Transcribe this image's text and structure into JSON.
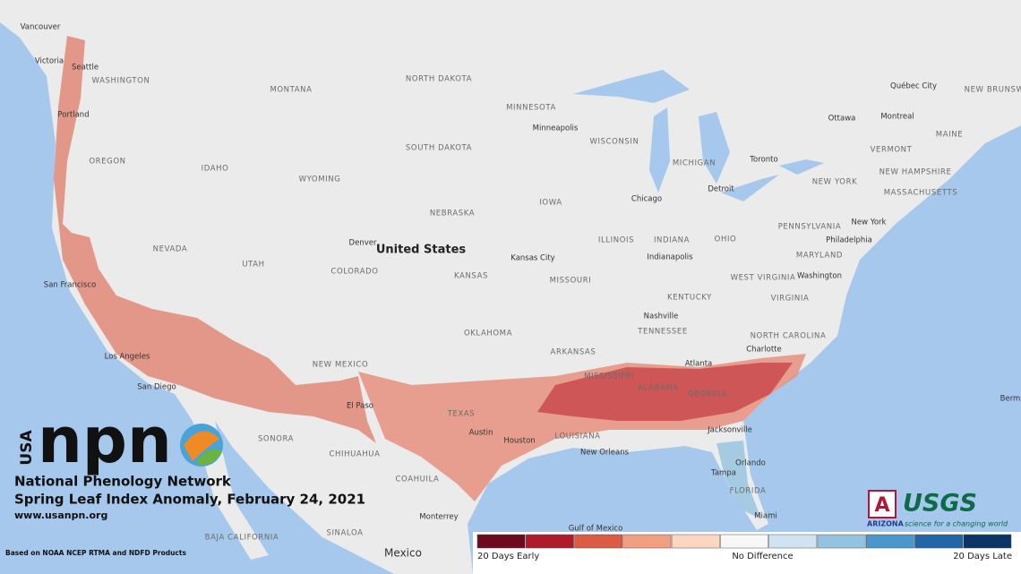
{
  "logo": {
    "usa": "USA",
    "npn": "npn",
    "network": "National Phenology Network"
  },
  "title": "Spring Leaf Index Anomaly, February 24, 2021",
  "url": "www.usanpn.org",
  "source": "Based on NOAA NCEP RTMA and NDFD Products",
  "legend": {
    "colors": [
      "#6d0a1e",
      "#b01b2b",
      "#dd5a45",
      "#f0a080",
      "#fcd6c0",
      "#f7f7f7",
      "#cfe3f2",
      "#93c3e0",
      "#4b96cb",
      "#2465a8",
      "#0b3566"
    ],
    "labels": [
      "20 Days Early",
      "No Difference",
      "20 Days Late"
    ]
  },
  "partners": {
    "arizona": "ARIZONA",
    "usgs": "USGS",
    "tagline": "science for a changing world"
  },
  "map_labels": [
    "Vancouver",
    "Victoria",
    "Seattle",
    "WASHINGTON",
    "Portland",
    "OREGON",
    "IDAHO",
    "MONTANA",
    "WYOMING",
    "NORTH DAKOTA",
    "SOUTH DAKOTA",
    "MINNESOTA",
    "Minneapolis",
    "WISCONSIN",
    "MICHIGAN",
    "Chicago",
    "Detroit",
    "Toronto",
    "Ottawa",
    "Montreal",
    "Québec City",
    "NEW BRUNSWICK",
    "MAINE",
    "VERMONT",
    "NEW HAMPSHIRE",
    "MASSACHUSETTS",
    "NEW YORK",
    "PENNSYLVANIA",
    "New York",
    "Philadelphia",
    "NEBRASKA",
    "IOWA",
    "ILLINOIS",
    "INDIANA",
    "OHIO",
    "Indianapolis",
    "NEVADA",
    "UTAH",
    "COLORADO",
    "Denver",
    "United States",
    "Kansas City",
    "KANSAS",
    "MISSOURI",
    "MARYLAND",
    "Washington",
    "WEST VIRGINIA",
    "VIRGINIA",
    "KENTUCKY",
    "San Francisco",
    "Nashville",
    "TENNESSEE",
    "NORTH CAROLINA",
    "Charlotte",
    "OKLAHOMA",
    "ARKANSAS",
    "Atlanta",
    "GEORGIA",
    "ALABAMA",
    "MISSISSIPPI",
    "NEW MEXICO",
    "Los Angeles",
    "San Diego",
    "TEXAS",
    "Austin",
    "Houston",
    "LOUISIANA",
    "New Orleans",
    "Jacksonville",
    "Orlando",
    "Tampa",
    "FLORIDA",
    "Miami",
    "SONORA",
    "CHIHUAHUA",
    "COAHUILA",
    "Monterrey",
    "BAJA CALIFORNIA",
    "SINALOA",
    "Mexico",
    "Gulf of Mexico",
    "Berm",
    "El Paso"
  ]
}
